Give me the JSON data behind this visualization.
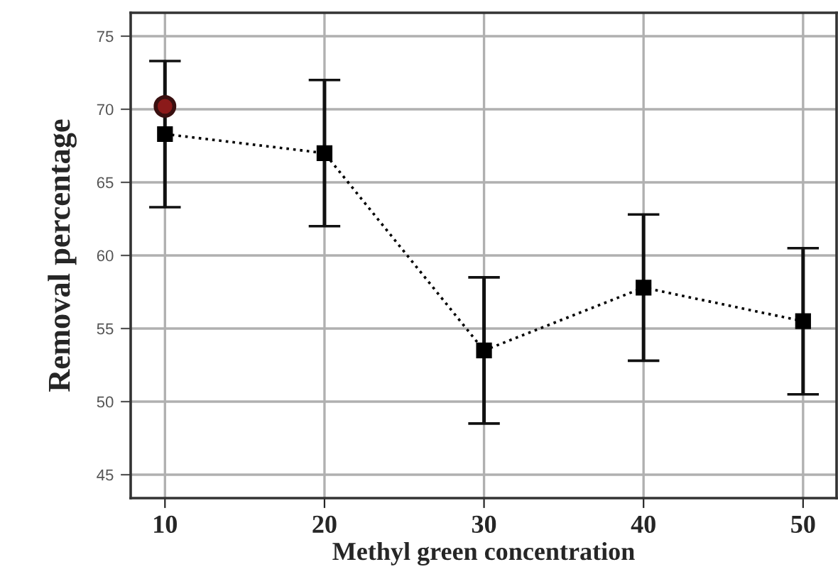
{
  "chart_data": {
    "type": "line",
    "xlabel": "Methyl green concentration",
    "ylabel": "Removal percentage",
    "x": [
      10,
      20,
      30,
      40,
      50
    ],
    "series": [
      {
        "color": "#000000",
        "values": [
          68.3,
          67.0,
          53.5,
          57.8,
          55.5
        ],
        "errors": [
          5,
          5,
          5,
          5,
          5
        ],
        "marker": "square",
        "line_style": "dotted"
      },
      {
        "type": "scatter",
        "color": "#8b1a1a",
        "x": [
          10
        ],
        "values": [
          70.2
        ],
        "marker": "circle"
      }
    ],
    "xlim": [
      7.85,
      52.1
    ],
    "ylim": [
      43.4,
      76.6
    ],
    "xticks": [
      10,
      20,
      30,
      40,
      50
    ],
    "yticks": [
      45,
      50,
      55,
      60,
      65,
      70,
      75
    ],
    "grid": true
  }
}
